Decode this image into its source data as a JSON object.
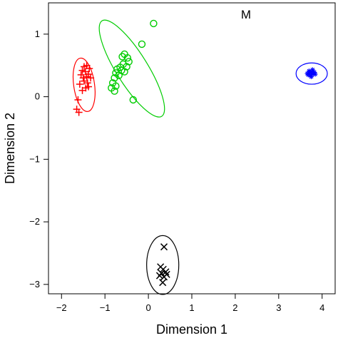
{
  "chart_data": {
    "type": "scatter",
    "title": "M",
    "xlabel": "Dimension 1",
    "ylabel": "Dimension 2",
    "xlim": [
      -2.3,
      4.3
    ],
    "ylim": [
      -3.15,
      1.5
    ],
    "x_ticks": [
      -2,
      -1,
      0,
      1,
      2,
      3,
      4
    ],
    "y_ticks": [
      -3,
      -2,
      -1,
      0,
      1
    ],
    "x_tick_labels": [
      "−2",
      "−1",
      "0",
      "1",
      "2",
      "3",
      "4"
    ],
    "y_tick_labels": [
      "−3",
      "−2",
      "−1",
      "0",
      "1"
    ],
    "grid": false,
    "legend": "none",
    "series": [
      {
        "marker": "plus",
        "color": "#ff0000",
        "points": [
          {
            "x": -1.48,
            "y": 0.48
          },
          {
            "x": -1.42,
            "y": 0.5
          },
          {
            "x": -1.36,
            "y": 0.45
          },
          {
            "x": -1.52,
            "y": 0.42
          },
          {
            "x": -1.45,
            "y": 0.4
          },
          {
            "x": -1.38,
            "y": 0.36
          },
          {
            "x": -1.55,
            "y": 0.35
          },
          {
            "x": -1.5,
            "y": 0.3
          },
          {
            "x": -1.42,
            "y": 0.32
          },
          {
            "x": -1.33,
            "y": 0.3
          },
          {
            "x": -1.48,
            "y": 0.25
          },
          {
            "x": -1.4,
            "y": 0.22
          },
          {
            "x": -1.58,
            "y": 0.2
          },
          {
            "x": -1.44,
            "y": 0.14
          },
          {
            "x": -1.38,
            "y": 0.16
          },
          {
            "x": -1.52,
            "y": 0.1
          },
          {
            "x": -1.62,
            "y": -0.05
          },
          {
            "x": -1.65,
            "y": -0.2
          },
          {
            "x": -1.6,
            "y": -0.25
          }
        ]
      },
      {
        "marker": "circle",
        "color": "#00cc00",
        "points": [
          {
            "x": 0.12,
            "y": 1.17
          },
          {
            "x": -0.15,
            "y": 0.84
          },
          {
            "x": -0.55,
            "y": 0.68
          },
          {
            "x": -0.6,
            "y": 0.64
          },
          {
            "x": -0.48,
            "y": 0.62
          },
          {
            "x": -0.45,
            "y": 0.56
          },
          {
            "x": -0.58,
            "y": 0.52
          },
          {
            "x": -0.5,
            "y": 0.48
          },
          {
            "x": -0.65,
            "y": 0.47
          },
          {
            "x": -0.72,
            "y": 0.44
          },
          {
            "x": -0.62,
            "y": 0.42
          },
          {
            "x": -0.55,
            "y": 0.4
          },
          {
            "x": -0.75,
            "y": 0.38
          },
          {
            "x": -0.68,
            "y": 0.34
          },
          {
            "x": -0.78,
            "y": 0.3
          },
          {
            "x": -0.82,
            "y": 0.22
          },
          {
            "x": -0.75,
            "y": 0.17
          },
          {
            "x": -0.85,
            "y": 0.14
          },
          {
            "x": -0.78,
            "y": 0.09
          },
          {
            "x": -0.35,
            "y": -0.05
          }
        ]
      },
      {
        "marker": "star",
        "color": "#0000ff",
        "points": [
          {
            "x": 3.68,
            "y": 0.35
          },
          {
            "x": 3.72,
            "y": 0.38
          },
          {
            "x": 3.76,
            "y": 0.4
          },
          {
            "x": 3.8,
            "y": 0.37
          },
          {
            "x": 3.74,
            "y": 0.34
          },
          {
            "x": 3.7,
            "y": 0.41
          },
          {
            "x": 3.78,
            "y": 0.43
          },
          {
            "x": 3.82,
            "y": 0.39
          },
          {
            "x": 3.66,
            "y": 0.37
          },
          {
            "x": 3.75,
            "y": 0.32
          },
          {
            "x": 3.84,
            "y": 0.36
          }
        ]
      },
      {
        "marker": "x",
        "color": "#000000",
        "points": [
          {
            "x": 0.36,
            "y": -2.4
          },
          {
            "x": 0.28,
            "y": -2.72
          },
          {
            "x": 0.34,
            "y": -2.76
          },
          {
            "x": 0.4,
            "y": -2.8
          },
          {
            "x": 0.3,
            "y": -2.82
          },
          {
            "x": 0.26,
            "y": -2.86
          },
          {
            "x": 0.36,
            "y": -2.88
          },
          {
            "x": 0.42,
            "y": -2.84
          },
          {
            "x": 0.33,
            "y": -2.97
          }
        ]
      }
    ],
    "ellipses": [
      {
        "color": "#ff0000",
        "cx": -1.48,
        "cy": 0.19,
        "rx": 0.24,
        "ry": 0.43,
        "rotation_deg": -8
      },
      {
        "color": "#00cc00",
        "cx": -0.38,
        "cy": 0.45,
        "rx": 0.36,
        "ry": 0.9,
        "rotation_deg": -32
      },
      {
        "color": "#0000ff",
        "cx": 3.76,
        "cy": 0.37,
        "rx": 0.36,
        "ry": 0.17,
        "rotation_deg": 0
      },
      {
        "color": "#000000",
        "cx": 0.33,
        "cy": -2.69,
        "rx": 0.37,
        "ry": 0.47,
        "rotation_deg": 0
      }
    ]
  }
}
